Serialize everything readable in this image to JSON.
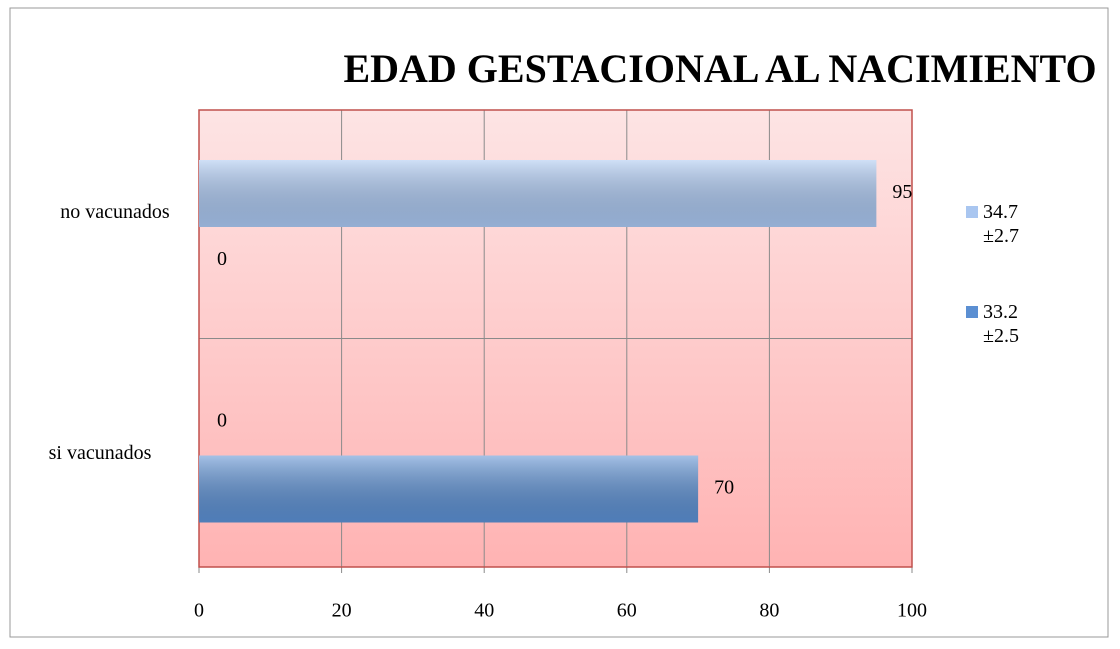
{
  "chart_data": {
    "type": "hbar",
    "title": "EDAD GESTACIONAL AL NACIMIENTO",
    "categories": [
      "no vacunados",
      "si vacunados"
    ],
    "series": [
      {
        "name": "34.7±2.7",
        "color": "#a9c6f0",
        "values": [
          95,
          0
        ]
      },
      {
        "name": "33.2±2.5",
        "color": "#5b8fd2",
        "values": [
          0,
          70
        ]
      }
    ],
    "xlim": [
      0,
      100
    ],
    "xticks": [
      0,
      20,
      40,
      60,
      80,
      100
    ],
    "grid": true,
    "legend": "right"
  }
}
